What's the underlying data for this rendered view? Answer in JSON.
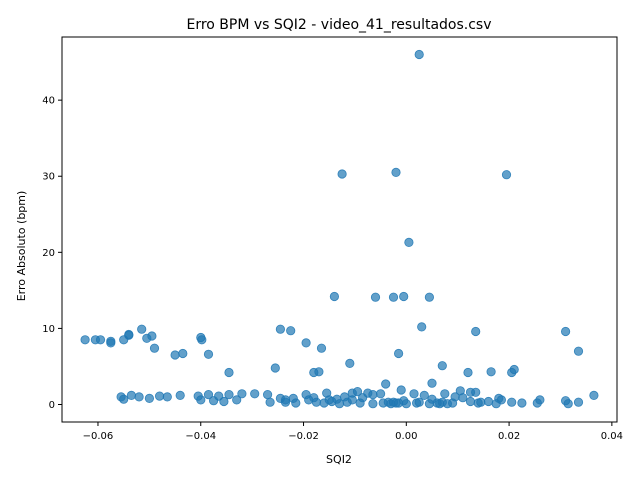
{
  "chart_data": {
    "type": "scatter",
    "title": "Erro BPM vs SQI2 - video_41_resultados.csv",
    "xlabel": "SQI2",
    "ylabel": "Erro Absoluto (bpm)",
    "xlim": [
      -0.067,
      0.041
    ],
    "ylim": [
      -2.3,
      48.3
    ],
    "xticks": [
      -0.06,
      -0.04,
      -0.02,
      0.0,
      0.02,
      0.04
    ],
    "xtick_labels": [
      "−0.06",
      "−0.04",
      "−0.02",
      "0.00",
      "0.02",
      "0.04"
    ],
    "yticks": [
      0,
      10,
      20,
      30,
      40
    ],
    "ytick_labels": [
      "0",
      "10",
      "20",
      "30",
      "40"
    ],
    "grid": false,
    "marker_color": "#1f77b4",
    "points": [
      [
        0.0025,
        46.0
      ],
      [
        -0.0125,
        30.3
      ],
      [
        -0.002,
        30.5
      ],
      [
        0.0195,
        30.2
      ],
      [
        0.0005,
        21.3
      ],
      [
        -0.014,
        14.2
      ],
      [
        -0.006,
        14.1
      ],
      [
        -0.0025,
        14.1
      ],
      [
        -0.0005,
        14.2
      ],
      [
        0.0045,
        14.1
      ],
      [
        0.003,
        10.2
      ],
      [
        0.0135,
        9.6
      ],
      [
        0.031,
        9.6
      ],
      [
        -0.0245,
        9.9
      ],
      [
        -0.0225,
        9.7
      ],
      [
        -0.0515,
        9.9
      ],
      [
        -0.054,
        9.2
      ],
      [
        -0.054,
        9.1
      ],
      [
        -0.0495,
        9.0
      ],
      [
        -0.0505,
        8.7
      ],
      [
        -0.0625,
        8.5
      ],
      [
        -0.0605,
        8.5
      ],
      [
        -0.0595,
        8.5
      ],
      [
        -0.0575,
        8.3
      ],
      [
        -0.0575,
        8.1
      ],
      [
        -0.055,
        8.5
      ],
      [
        -0.04,
        8.8
      ],
      [
        -0.0398,
        8.5
      ],
      [
        -0.0195,
        8.1
      ],
      [
        -0.049,
        7.4
      ],
      [
        -0.0165,
        7.4
      ],
      [
        -0.0435,
        6.7
      ],
      [
        -0.045,
        6.5
      ],
      [
        -0.0385,
        6.6
      ],
      [
        -0.0015,
        6.7
      ],
      [
        0.0335,
        7.0
      ],
      [
        -0.011,
        5.4
      ],
      [
        0.007,
        5.1
      ],
      [
        -0.0255,
        4.8
      ],
      [
        0.021,
        4.6
      ],
      [
        0.0205,
        4.2
      ],
      [
        0.0165,
        4.3
      ],
      [
        0.012,
        4.2
      ],
      [
        -0.0345,
        4.2
      ],
      [
        -0.017,
        4.3
      ],
      [
        -0.018,
        4.2
      ],
      [
        -0.004,
        2.7
      ],
      [
        0.005,
        2.8
      ],
      [
        -0.001,
        1.9
      ],
      [
        0.0105,
        1.8
      ],
      [
        0.0125,
        1.6
      ],
      [
        0.0135,
        1.6
      ],
      [
        0.0365,
        1.2
      ],
      [
        -0.0555,
        1.0
      ],
      [
        -0.0535,
        1.2
      ],
      [
        -0.052,
        1.0
      ],
      [
        -0.048,
        1.1
      ],
      [
        -0.0465,
        1.0
      ],
      [
        -0.044,
        1.2
      ],
      [
        -0.0405,
        1.1
      ],
      [
        -0.0385,
        1.3
      ],
      [
        -0.0365,
        1.1
      ],
      [
        -0.0345,
        1.3
      ],
      [
        -0.032,
        1.4
      ],
      [
        -0.0295,
        1.4
      ],
      [
        -0.027,
        1.3
      ],
      [
        -0.0245,
        0.8
      ],
      [
        -0.0235,
        0.6
      ],
      [
        -0.022,
        0.8
      ],
      [
        -0.0195,
        1.3
      ],
      [
        -0.018,
        0.9
      ],
      [
        -0.0155,
        1.5
      ],
      [
        -0.0135,
        0.7
      ],
      [
        -0.012,
        1.0
      ],
      [
        -0.0105,
        1.5
      ],
      [
        -0.0095,
        1.7
      ],
      [
        -0.0085,
        0.9
      ],
      [
        -0.0075,
        1.5
      ],
      [
        -0.0065,
        1.3
      ],
      [
        -0.005,
        1.4
      ],
      [
        -0.0035,
        0.3
      ],
      [
        -0.002,
        0.2
      ],
      [
        -0.0005,
        0.5
      ],
      [
        0.0015,
        1.4
      ],
      [
        0.0035,
        1.2
      ],
      [
        0.005,
        0.7
      ],
      [
        0.007,
        0.3
      ],
      [
        0.009,
        0.2
      ],
      [
        0.011,
        0.9
      ],
      [
        0.0125,
        0.4
      ],
      [
        0.014,
        0.2
      ],
      [
        0.016,
        0.4
      ],
      [
        0.018,
        0.8
      ],
      [
        0.0205,
        0.3
      ],
      [
        0.0225,
        0.2
      ],
      [
        0.026,
        0.6
      ],
      [
        0.031,
        0.5
      ],
      [
        0.0335,
        0.3
      ],
      [
        -0.055,
        0.7
      ],
      [
        -0.05,
        0.8
      ],
      [
        -0.0375,
        0.5
      ],
      [
        -0.033,
        0.6
      ],
      [
        -0.0265,
        0.3
      ],
      [
        -0.0215,
        0.2
      ],
      [
        -0.0175,
        0.3
      ],
      [
        -0.016,
        0.2
      ],
      [
        -0.0145,
        0.4
      ],
      [
        -0.013,
        0.1
      ],
      [
        -0.0115,
        0.3
      ],
      [
        -0.009,
        0.2
      ],
      [
        -0.0065,
        0.1
      ],
      [
        -0.0045,
        0.2
      ],
      [
        -0.003,
        0.1
      ],
      [
        -0.0015,
        0.2
      ],
      [
        0.0,
        0.1
      ],
      [
        0.002,
        0.2
      ],
      [
        0.0045,
        0.1
      ],
      [
        0.006,
        0.2
      ],
      [
        0.008,
        0.1
      ],
      [
        0.0145,
        0.3
      ],
      [
        0.0175,
        0.1
      ],
      [
        0.0255,
        0.2
      ],
      [
        0.0315,
        0.1
      ],
      [
        -0.04,
        0.6
      ],
      [
        -0.0355,
        0.4
      ],
      [
        -0.0235,
        0.3
      ],
      [
        -0.019,
        0.6
      ],
      [
        -0.015,
        0.6
      ],
      [
        -0.0105,
        0.6
      ],
      [
        -0.0025,
        0.3
      ],
      [
        0.0025,
        0.3
      ],
      [
        0.0065,
        0.1
      ],
      [
        0.0095,
        1.0
      ],
      [
        0.0185,
        0.6
      ],
      [
        0.0075,
        1.4
      ]
    ]
  }
}
